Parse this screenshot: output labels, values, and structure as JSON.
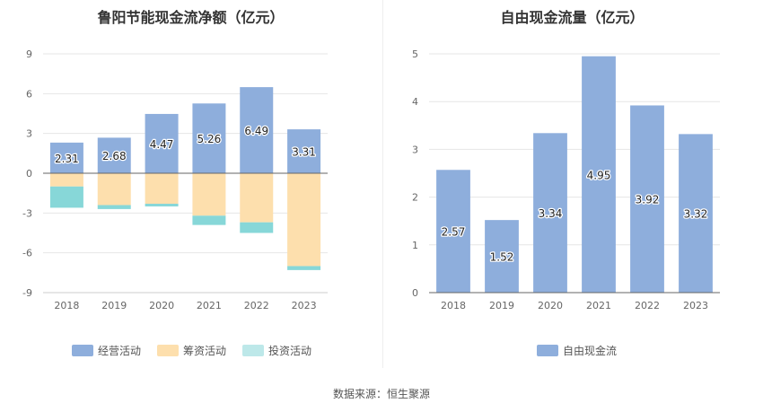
{
  "chart_data": [
    {
      "type": "bar",
      "stacked": true,
      "title": "鲁阳节能现金流净额（亿元）",
      "categories": [
        "2018",
        "2019",
        "2020",
        "2021",
        "2022",
        "2023"
      ],
      "series": [
        {
          "name": "经营活动",
          "color": "#8eaedc",
          "values": [
            2.31,
            2.68,
            4.47,
            5.26,
            6.49,
            3.31
          ]
        },
        {
          "name": "筹资活动",
          "color": "#fddfad",
          "values": [
            -1.0,
            -2.4,
            -2.3,
            -3.2,
            -3.7,
            -7.0
          ]
        },
        {
          "name": "投资活动",
          "color": "#87d7d8",
          "values": [
            -1.6,
            -0.3,
            -0.2,
            -0.7,
            -0.8,
            -0.3
          ]
        }
      ],
      "data_labels": [
        "2.31",
        "2.68",
        "4.47",
        "5.26",
        "6.49",
        "3.31"
      ],
      "yticks": [
        "9",
        "6",
        "3",
        "0",
        "-3",
        "-6",
        "-9"
      ],
      "ylim": [
        -9,
        9
      ],
      "legend": "bottom",
      "grid": true
    },
    {
      "type": "bar",
      "title": "自由现金流量（亿元）",
      "categories": [
        "2018",
        "2019",
        "2020",
        "2021",
        "2022",
        "2023"
      ],
      "series": [
        {
          "name": "自由现金流",
          "color": "#8eaedc",
          "values": [
            2.57,
            1.52,
            3.34,
            4.95,
            3.92,
            3.32
          ]
        }
      ],
      "data_labels": [
        "2.57",
        "1.52",
        "3.34",
        "4.95",
        "3.92",
        "3.32"
      ],
      "yticks": [
        "5",
        "4",
        "3",
        "2",
        "1",
        "0"
      ],
      "ylim": [
        0,
        5
      ],
      "legend": "bottom",
      "grid": true
    }
  ],
  "source": "数据来源：恒生聚源"
}
